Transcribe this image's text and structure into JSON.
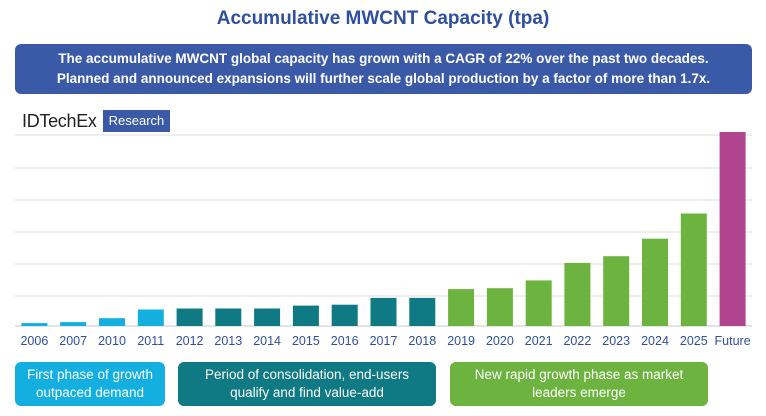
{
  "title": "Accumulative MWCNT Capacity (tpa)",
  "banner": {
    "line1": "The accumulative MWCNT global capacity has grown with a CAGR of 22% over the past two decades.",
    "line2": "Planned and announced expansions will further scale global production by a factor of more than 1.7x."
  },
  "logo": {
    "name": "IDTechEx",
    "tag": "Research"
  },
  "phases": [
    {
      "line1": "First phase of growth",
      "line2": "outpaced demand",
      "color": "#13afe0"
    },
    {
      "line1": "Period of consolidation, end-users",
      "line2": "qualify and find value-add",
      "color": "#0f7a84"
    },
    {
      "line1": "New rapid growth phase as market",
      "line2": "leaders emerge",
      "color": "#6db33f"
    }
  ],
  "colors": {
    "gridline": "#dcdcdc",
    "axis_label": "#2f4fa0",
    "phase1": "#13afe0",
    "phase2": "#0f7a84",
    "phase3": "#6db33f",
    "future": "#b0448f"
  },
  "chart_data": {
    "type": "bar",
    "title": "Accumulative MWCNT Capacity (tpa)",
    "xlabel": "",
    "ylabel": "",
    "ylim": [
      0,
      100
    ],
    "grid": true,
    "categories": [
      "2006",
      "2007",
      "2010",
      "2011",
      "2012",
      "2013",
      "2014",
      "2015",
      "2016",
      "2017",
      "2018",
      "2019",
      "2020",
      "2021",
      "2022",
      "2023",
      "2024",
      "2025",
      "Future"
    ],
    "values": [
      1.5,
      2,
      4,
      8.5,
      9,
      9,
      9,
      10.5,
      11,
      14.5,
      14.5,
      19,
      19.5,
      23.5,
      32.5,
      36,
      45,
      58,
      100
    ],
    "phase": [
      1,
      1,
      1,
      1,
      2,
      2,
      2,
      2,
      2,
      2,
      2,
      3,
      3,
      3,
      3,
      3,
      3,
      3,
      4
    ]
  }
}
